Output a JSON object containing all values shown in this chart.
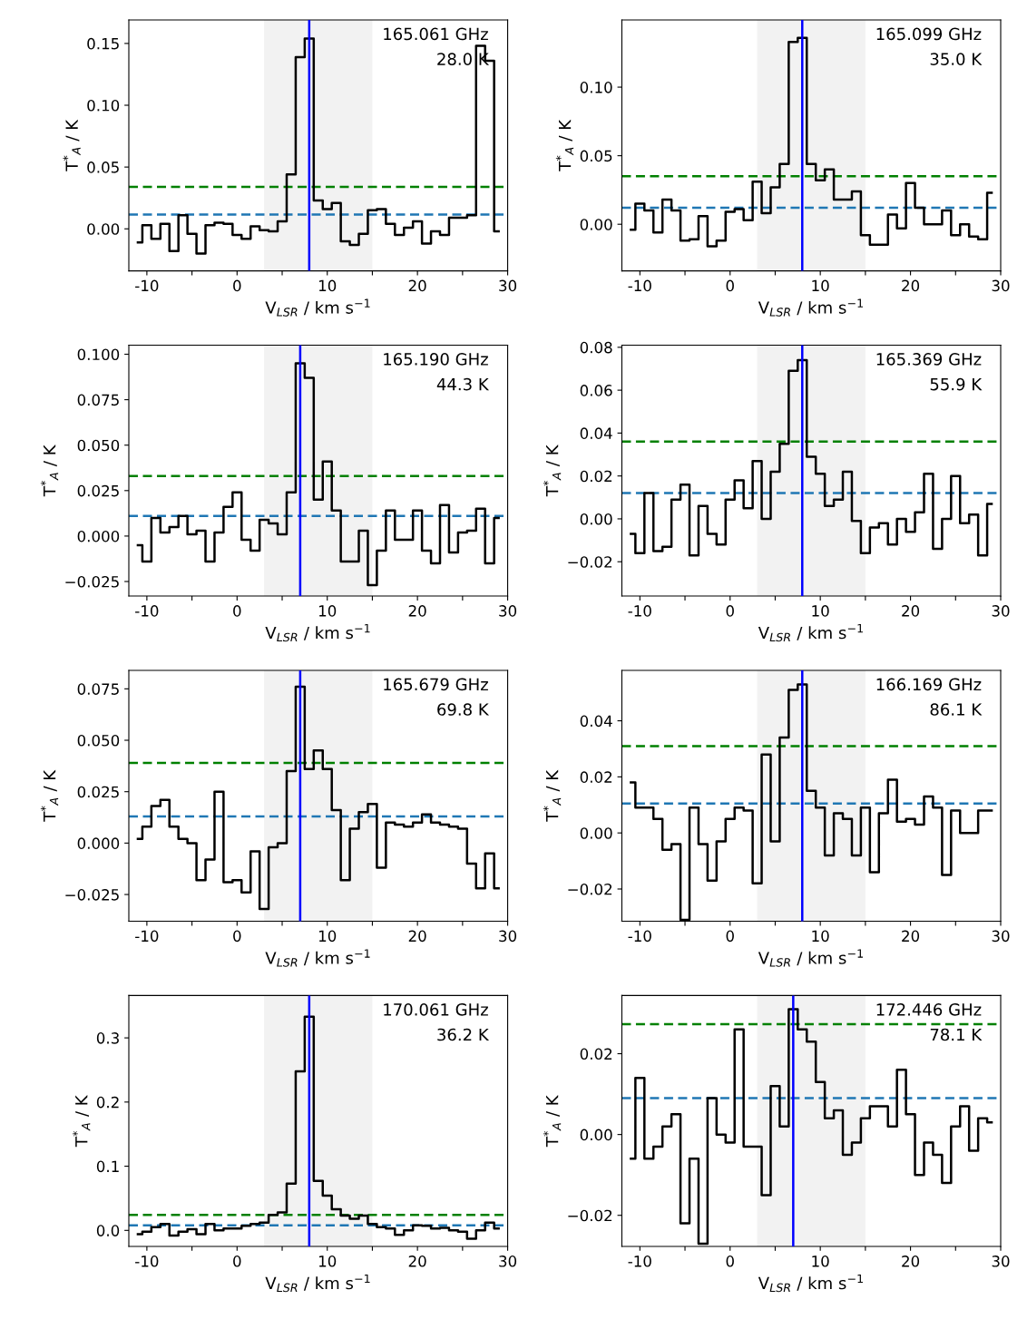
{
  "chart_data": [
    {
      "type": "step",
      "annotations": [
        "165.061 GHz",
        "28.0 K"
      ],
      "xlabel": "V$_{LSR}$ / km s$^{−1}$",
      "ylabel": "T$^{*}$$_{A}$ / K",
      "xlim": [
        -12,
        30
      ],
      "ylim": [
        -0.034,
        0.169
      ],
      "xticks": [
        -10,
        {
          "value": -5,
          "label": null
        },
        0,
        {
          "value": 5,
          "label": null
        },
        10,
        {
          "value": 15,
          "label": null
        },
        20,
        {
          "value": 25,
          "label": null
        },
        30
      ],
      "yticks": [
        {
          "value": 0,
          "label": "0.00"
        },
        {
          "value": 0.05,
          "label": "0.05"
        },
        {
          "value": 0.1,
          "label": "0.10"
        },
        {
          "value": 0.15,
          "label": "0.15"
        }
      ],
      "x": [
        -11,
        -10,
        -9,
        -8,
        -7,
        -6,
        -5,
        -4,
        -3,
        -2,
        -1,
        0,
        1,
        2,
        3,
        4,
        5,
        6,
        7,
        8,
        9,
        10,
        11,
        12,
        13,
        14,
        15,
        16,
        17,
        18,
        19,
        20,
        21,
        22,
        23,
        24,
        25,
        26,
        27,
        28,
        29
      ],
      "series": [
        {
          "color": "#000000",
          "values": [
            -0.011,
            0.003,
            -0.008,
            0.004,
            -0.018,
            0.011,
            -0.004,
            -0.02,
            0.003,
            0.005,
            0.004,
            -0.005,
            -0.008,
            0.002,
            -0.001,
            -0.002,
            0.006,
            0.044,
            0.139,
            0.154,
            0.023,
            0.016,
            0.021,
            -0.01,
            -0.013,
            -0.004,
            0.015,
            0.016,
            0.004,
            -0.005,
            0.001,
            0.006,
            -0.012,
            -0.002,
            -0.005,
            0.009,
            0.009,
            0.011,
            0.148,
            0.136,
            -0.002
          ]
        }
      ],
      "ref_lines": [
        {
          "axis": "y",
          "value": 0.034,
          "color": "#008000",
          "line_style": "dashed"
        },
        {
          "axis": "y",
          "value": 0.0115,
          "color": "#1f77b4",
          "line_style": "dashed"
        },
        {
          "axis": "x",
          "value": 8,
          "color": "#0000ff",
          "line_style": "solid"
        }
      ],
      "bands": [
        {
          "axis": "x",
          "from": 3,
          "to": 15,
          "color": "#f2f2f2"
        }
      ]
    },
    {
      "type": "step",
      "annotations": [
        "165.099 GHz",
        "35.0 K"
      ],
      "xlabel": "V$_{LSR}$ / km s$^{−1}$",
      "ylabel": "T$^{*}$$_{A}$ / K",
      "xlim": [
        -12,
        30
      ],
      "ylim": [
        -0.034,
        0.149
      ],
      "xticks": [
        -10,
        {
          "value": -5,
          "label": null
        },
        0,
        {
          "value": 5,
          "label": null
        },
        10,
        {
          "value": 15,
          "label": null
        },
        20,
        {
          "value": 25,
          "label": null
        },
        30
      ],
      "yticks": [
        {
          "value": 0,
          "label": "0.00"
        },
        {
          "value": 0.05,
          "label": "0.05"
        },
        {
          "value": 0.1,
          "label": "0.10"
        }
      ],
      "x": [
        -11,
        -10,
        -9,
        -8,
        -7,
        -6,
        -5,
        -4,
        -3,
        -2,
        -1,
        0,
        1,
        2,
        3,
        4,
        5,
        6,
        7,
        8,
        9,
        10,
        11,
        12,
        13,
        14,
        15,
        16,
        17,
        18,
        19,
        20,
        21,
        22,
        23,
        24,
        25,
        26,
        27,
        28,
        29
      ],
      "series": [
        {
          "color": "#000000",
          "values": [
            -0.004,
            0.015,
            0.01,
            -0.006,
            0.018,
            0.01,
            -0.012,
            -0.011,
            0.006,
            -0.016,
            -0.012,
            0.009,
            0.011,
            0.003,
            0.031,
            0.008,
            0.027,
            0.044,
            0.133,
            0.136,
            0.044,
            0.032,
            0.04,
            0.018,
            0.018,
            0.024,
            -0.008,
            -0.015,
            -0.015,
            0.007,
            -0.003,
            0.03,
            0.012,
            0.0,
            0.0,
            0.01,
            -0.008,
            0.0,
            -0.009,
            -0.011,
            0.023
          ]
        }
      ],
      "ref_lines": [
        {
          "axis": "y",
          "value": 0.035,
          "color": "#008000",
          "line_style": "dashed"
        },
        {
          "axis": "y",
          "value": 0.012,
          "color": "#1f77b4",
          "line_style": "dashed"
        },
        {
          "axis": "x",
          "value": 8,
          "color": "#0000ff",
          "line_style": "solid"
        }
      ],
      "bands": [
        {
          "axis": "x",
          "from": 3,
          "to": 15,
          "color": "#f2f2f2"
        }
      ]
    },
    {
      "type": "step",
      "annotations": [
        "165.190 GHz",
        "44.3 K"
      ],
      "xlabel": "V$_{LSR}$ / km s$^{−1}$",
      "ylabel": "T$^{*}$$_{A}$ / K",
      "xlim": [
        -12,
        30
      ],
      "ylim": [
        -0.033,
        0.105
      ],
      "xticks": [
        -10,
        {
          "value": -5,
          "label": null
        },
        0,
        {
          "value": 5,
          "label": null
        },
        10,
        {
          "value": 15,
          "label": null
        },
        20,
        {
          "value": 25,
          "label": null
        },
        30
      ],
      "yticks": [
        {
          "value": -0.025,
          "label": "−0.025"
        },
        {
          "value": 0,
          "label": "0.000"
        },
        {
          "value": 0.025,
          "label": "0.025"
        },
        {
          "value": 0.05,
          "label": "0.050"
        },
        {
          "value": 0.075,
          "label": "0.075"
        },
        {
          "value": 0.1,
          "label": "0.100"
        }
      ],
      "x": [
        -11,
        -10,
        -9,
        -8,
        -7,
        -6,
        -5,
        -4,
        -3,
        -2,
        -1,
        0,
        1,
        2,
        3,
        4,
        5,
        6,
        7,
        8,
        9,
        10,
        11,
        12,
        13,
        14,
        15,
        16,
        17,
        18,
        19,
        20,
        21,
        22,
        23,
        24,
        25,
        26,
        27,
        28,
        29
      ],
      "series": [
        {
          "color": "#000000",
          "values": [
            -0.005,
            -0.014,
            0.01,
            0.002,
            0.005,
            0.011,
            0.001,
            0.003,
            -0.014,
            0.002,
            0.016,
            0.024,
            -0.002,
            -0.008,
            0.009,
            0.007,
            0.001,
            0.024,
            0.095,
            0.087,
            0.02,
            0.041,
            0.014,
            -0.014,
            -0.014,
            0.003,
            -0.027,
            -0.008,
            0.014,
            -0.002,
            -0.002,
            0.014,
            -0.008,
            -0.015,
            0.017,
            -0.009,
            0.002,
            0.003,
            0.015,
            -0.015,
            0.01
          ]
        }
      ],
      "ref_lines": [
        {
          "axis": "y",
          "value": 0.033,
          "color": "#008000",
          "line_style": "dashed"
        },
        {
          "axis": "y",
          "value": 0.011,
          "color": "#1f77b4",
          "line_style": "dashed"
        },
        {
          "axis": "x",
          "value": 7,
          "color": "#0000ff",
          "line_style": "solid"
        }
      ],
      "bands": [
        {
          "axis": "x",
          "from": 3,
          "to": 15,
          "color": "#f2f2f2"
        }
      ]
    },
    {
      "type": "step",
      "annotations": [
        "165.369 GHz",
        "55.9 K"
      ],
      "xlabel": "V$_{LSR}$ / km s$^{−1}$",
      "ylabel": "T$^{*}$$_{A}$ / K",
      "xlim": [
        -12,
        30
      ],
      "ylim": [
        -0.036,
        0.081
      ],
      "xticks": [
        -10,
        {
          "value": -5,
          "label": null
        },
        0,
        {
          "value": 5,
          "label": null
        },
        10,
        {
          "value": 15,
          "label": null
        },
        20,
        {
          "value": 25,
          "label": null
        },
        30
      ],
      "yticks": [
        {
          "value": -0.02,
          "label": "−0.02"
        },
        {
          "value": 0,
          "label": "0.00"
        },
        {
          "value": 0.02,
          "label": "0.02"
        },
        {
          "value": 0.04,
          "label": "0.04"
        },
        {
          "value": 0.06,
          "label": "0.06"
        },
        {
          "value": 0.08,
          "label": "0.08"
        }
      ],
      "x": [
        -11,
        -10,
        -9,
        -8,
        -7,
        -6,
        -5,
        -4,
        -3,
        -2,
        -1,
        0,
        1,
        2,
        3,
        4,
        5,
        6,
        7,
        8,
        9,
        10,
        11,
        12,
        13,
        14,
        15,
        16,
        17,
        18,
        19,
        20,
        21,
        22,
        23,
        24,
        25,
        26,
        27,
        28,
        29
      ],
      "series": [
        {
          "color": "#000000",
          "values": [
            -0.007,
            -0.016,
            0.012,
            -0.015,
            -0.013,
            0.009,
            0.016,
            -0.017,
            0.006,
            -0.007,
            -0.012,
            0.009,
            0.018,
            0.005,
            0.027,
            0.0,
            0.022,
            0.035,
            0.069,
            0.074,
            0.029,
            0.021,
            0.006,
            0.009,
            0.022,
            -0.001,
            -0.016,
            -0.004,
            -0.002,
            -0.012,
            0.0,
            -0.006,
            0.003,
            0.021,
            -0.014,
            0.0,
            0.02,
            -0.002,
            0.002,
            -0.017,
            0.007
          ]
        }
      ],
      "ref_lines": [
        {
          "axis": "y",
          "value": 0.036,
          "color": "#008000",
          "line_style": "dashed"
        },
        {
          "axis": "y",
          "value": 0.012,
          "color": "#1f77b4",
          "line_style": "dashed"
        },
        {
          "axis": "x",
          "value": 8,
          "color": "#0000ff",
          "line_style": "solid"
        }
      ],
      "bands": [
        {
          "axis": "x",
          "from": 3,
          "to": 15,
          "color": "#f2f2f2"
        }
      ]
    },
    {
      "type": "step",
      "annotations": [
        "165.679 GHz",
        "69.8 K"
      ],
      "xlabel": "V$_{LSR}$ / km s$^{−1}$",
      "ylabel": "T$^{*}$$_{A}$ / K",
      "xlim": [
        -12,
        30
      ],
      "ylim": [
        -0.038,
        0.084
      ],
      "xticks": [
        -10,
        {
          "value": -5,
          "label": null
        },
        0,
        {
          "value": 5,
          "label": null
        },
        10,
        {
          "value": 15,
          "label": null
        },
        20,
        {
          "value": 25,
          "label": null
        },
        30
      ],
      "yticks": [
        {
          "value": -0.025,
          "label": "−0.025"
        },
        {
          "value": 0,
          "label": "0.000"
        },
        {
          "value": 0.025,
          "label": "0.025"
        },
        {
          "value": 0.05,
          "label": "0.050"
        },
        {
          "value": 0.075,
          "label": "0.075"
        }
      ],
      "x": [
        -11,
        -10,
        -9,
        -8,
        -7,
        -6,
        -5,
        -4,
        -3,
        -2,
        -1,
        0,
        1,
        2,
        3,
        4,
        5,
        6,
        7,
        8,
        9,
        10,
        11,
        12,
        13,
        14,
        15,
        16,
        17,
        18,
        19,
        20,
        21,
        22,
        23,
        24,
        25,
        26,
        27,
        28,
        29
      ],
      "series": [
        {
          "color": "#000000",
          "values": [
            0.002,
            0.008,
            0.018,
            0.021,
            0.008,
            0.002,
            0.0,
            -0.018,
            -0.008,
            0.025,
            -0.019,
            -0.018,
            -0.024,
            -0.004,
            -0.032,
            -0.002,
            0.0,
            0.035,
            0.076,
            0.036,
            0.045,
            0.036,
            0.016,
            -0.018,
            0.007,
            0.015,
            0.019,
            -0.012,
            0.01,
            0.009,
            0.008,
            0.01,
            0.014,
            0.01,
            0.009,
            0.008,
            0.007,
            -0.01,
            -0.022,
            -0.005,
            -0.022
          ]
        }
      ],
      "ref_lines": [
        {
          "axis": "y",
          "value": 0.039,
          "color": "#008000",
          "line_style": "dashed"
        },
        {
          "axis": "y",
          "value": 0.013,
          "color": "#1f77b4",
          "line_style": "dashed"
        },
        {
          "axis": "x",
          "value": 7,
          "color": "#0000ff",
          "line_style": "solid"
        }
      ],
      "bands": [
        {
          "axis": "x",
          "from": 3,
          "to": 15,
          "color": "#f2f2f2"
        }
      ]
    },
    {
      "type": "step",
      "annotations": [
        "166.169 GHz",
        "86.1 K"
      ],
      "xlabel": "V$_{LSR}$ / km s$^{−1}$",
      "ylabel": "T$^{*}$$_{A}$ / K",
      "xlim": [
        -12,
        30
      ],
      "ylim": [
        -0.0315,
        0.058
      ],
      "xticks": [
        -10,
        {
          "value": -5,
          "label": null
        },
        0,
        {
          "value": 5,
          "label": null
        },
        10,
        {
          "value": 15,
          "label": null
        },
        20,
        {
          "value": 25,
          "label": null
        },
        30
      ],
      "yticks": [
        {
          "value": -0.02,
          "label": "−0.02"
        },
        {
          "value": 0,
          "label": "0.00"
        },
        {
          "value": 0.02,
          "label": "0.02"
        },
        {
          "value": 0.04,
          "label": "0.04"
        }
      ],
      "x": [
        -11,
        -10,
        -9,
        -8,
        -7,
        -6,
        -5,
        -4,
        -3,
        -2,
        -1,
        0,
        1,
        2,
        3,
        4,
        5,
        6,
        7,
        8,
        9,
        10,
        11,
        12,
        13,
        14,
        15,
        16,
        17,
        18,
        19,
        20,
        21,
        22,
        23,
        24,
        25,
        26,
        27,
        28,
        29
      ],
      "series": [
        {
          "color": "#000000",
          "values": [
            0.018,
            0.009,
            0.009,
            0.005,
            -0.006,
            -0.004,
            -0.031,
            0.009,
            -0.004,
            -0.017,
            -0.003,
            0.005,
            0.009,
            0.008,
            -0.018,
            0.028,
            -0.003,
            0.034,
            0.051,
            0.053,
            0.015,
            0.009,
            -0.008,
            0.007,
            0.005,
            -0.008,
            0.009,
            -0.014,
            0.007,
            0.019,
            0.004,
            0.005,
            0.003,
            0.013,
            0.009,
            -0.015,
            0.008,
            0.0,
            0.0,
            0.008,
            0.008
          ]
        }
      ],
      "ref_lines": [
        {
          "axis": "y",
          "value": 0.031,
          "color": "#008000",
          "line_style": "dashed"
        },
        {
          "axis": "y",
          "value": 0.0105,
          "color": "#1f77b4",
          "line_style": "dashed"
        },
        {
          "axis": "x",
          "value": 8,
          "color": "#0000ff",
          "line_style": "solid"
        }
      ],
      "bands": [
        {
          "axis": "x",
          "from": 3,
          "to": 15,
          "color": "#f2f2f2"
        }
      ]
    },
    {
      "type": "step",
      "annotations": [
        "170.061 GHz",
        "36.2 K"
      ],
      "xlabel": "V$_{LSR}$ / km s$^{−1}$",
      "ylabel": "T$^{*}$$_{A}$ / K",
      "xlim": [
        -12,
        30
      ],
      "ylim": [
        -0.025,
        0.366
      ],
      "xticks": [
        -10,
        {
          "value": -5,
          "label": null
        },
        0,
        {
          "value": 5,
          "label": null
        },
        10,
        {
          "value": 15,
          "label": null
        },
        20,
        {
          "value": 25,
          "label": null
        },
        30
      ],
      "yticks": [
        {
          "value": 0,
          "label": "0.0"
        },
        {
          "value": 0.1,
          "label": "0.1"
        },
        {
          "value": 0.2,
          "label": "0.2"
        },
        {
          "value": 0.3,
          "label": "0.3"
        }
      ],
      "x": [
        -11,
        -10,
        -9,
        -8,
        -7,
        -6,
        -5,
        -4,
        -3,
        -2,
        -1,
        0,
        1,
        2,
        3,
        4,
        5,
        6,
        7,
        8,
        9,
        10,
        11,
        12,
        13,
        14,
        15,
        16,
        17,
        18,
        19,
        20,
        21,
        22,
        23,
        24,
        25,
        26,
        27,
        28,
        29
      ],
      "series": [
        {
          "color": "#000000",
          "values": [
            -0.006,
            -0.002,
            0.005,
            0.01,
            -0.008,
            -0.002,
            0.002,
            -0.006,
            0.01,
            0.0,
            0.003,
            0.003,
            0.007,
            0.01,
            0.012,
            0.024,
            0.028,
            0.073,
            0.248,
            0.333,
            0.077,
            0.054,
            0.033,
            0.023,
            0.018,
            0.023,
            0.01,
            0.005,
            0.003,
            -0.007,
            0.0,
            0.008,
            0.007,
            0.003,
            0.004,
            0.0,
            -0.002,
            -0.013,
            0.0,
            0.012,
            0.003
          ]
        }
      ],
      "ref_lines": [
        {
          "axis": "y",
          "value": 0.024,
          "color": "#008000",
          "line_style": "dashed"
        },
        {
          "axis": "y",
          "value": 0.008,
          "color": "#1f77b4",
          "line_style": "dashed"
        },
        {
          "axis": "x",
          "value": 8,
          "color": "#0000ff",
          "line_style": "solid"
        }
      ],
      "bands": [
        {
          "axis": "x",
          "from": 3,
          "to": 15,
          "color": "#f2f2f2"
        }
      ]
    },
    {
      "type": "step",
      "annotations": [
        "172.446 GHz",
        "78.1 K"
      ],
      "xlabel": "V$_{LSR}$ / km s$^{−1}$",
      "ylabel": "T$^{*}$$_{A}$ / K",
      "xlim": [
        -12,
        30
      ],
      "ylim": [
        -0.0277,
        0.0344
      ],
      "xticks": [
        -10,
        {
          "value": -5,
          "label": null
        },
        0,
        {
          "value": 5,
          "label": null
        },
        10,
        {
          "value": 15,
          "label": null
        },
        20,
        {
          "value": 25,
          "label": null
        },
        30
      ],
      "yticks": [
        {
          "value": -0.02,
          "label": "−0.02"
        },
        {
          "value": 0,
          "label": "0.00"
        },
        {
          "value": 0.02,
          "label": "0.02"
        }
      ],
      "x": [
        -11,
        -10,
        -9,
        -8,
        -7,
        -6,
        -5,
        -4,
        -3,
        -2,
        -1,
        0,
        1,
        2,
        3,
        4,
        5,
        6,
        7,
        8,
        9,
        10,
        11,
        12,
        13,
        14,
        15,
        16,
        17,
        18,
        19,
        20,
        21,
        22,
        23,
        24,
        25,
        26,
        27,
        28,
        29
      ],
      "series": [
        {
          "color": "#000000",
          "values": [
            -0.006,
            0.014,
            -0.006,
            -0.003,
            0.002,
            0.005,
            -0.022,
            -0.006,
            -0.027,
            0.009,
            0.0,
            -0.002,
            0.026,
            -0.003,
            -0.003,
            -0.015,
            0.012,
            0.002,
            0.031,
            0.026,
            0.023,
            0.013,
            0.004,
            0.006,
            -0.005,
            -0.002,
            0.004,
            0.007,
            0.007,
            0.002,
            0.016,
            0.005,
            -0.01,
            -0.002,
            -0.005,
            -0.012,
            0.002,
            0.007,
            -0.004,
            0.004,
            0.003
          ]
        }
      ],
      "ref_lines": [
        {
          "axis": "y",
          "value": 0.0273,
          "color": "#008000",
          "line_style": "dashed"
        },
        {
          "axis": "y",
          "value": 0.009,
          "color": "#1f77b4",
          "line_style": "dashed"
        },
        {
          "axis": "x",
          "value": 7,
          "color": "#0000ff",
          "line_style": "solid"
        }
      ],
      "bands": [
        {
          "axis": "x",
          "from": 3,
          "to": 15,
          "color": "#f2f2f2"
        }
      ]
    }
  ]
}
